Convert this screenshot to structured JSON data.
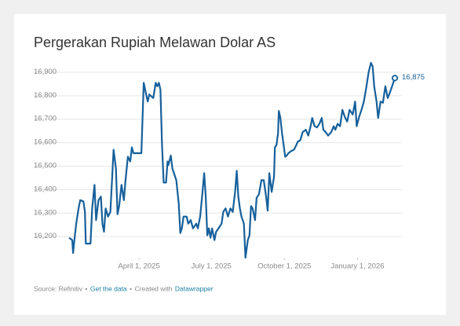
{
  "chart_data": {
    "type": "line",
    "title": "Pergerakan Rupiah Melawan Dolar AS",
    "source": "Source: Refinitiv",
    "separator": "•",
    "get_data": "Get the data",
    "created_with": "Created with",
    "credit": "Datawrapper",
    "xlim": [
      "2025-01-03",
      "2026-02-17"
    ],
    "xticks": [
      {
        "value": "2025-04-01",
        "label": "April 1, 2025"
      },
      {
        "value": "2025-07-01",
        "label": "July 1, 2025"
      },
      {
        "value": "2025-10-01",
        "label": "October 1, 2025"
      },
      {
        "value": "2026-01-01",
        "label": "January 1, 2026"
      }
    ],
    "ylim": [
      16100,
      16950
    ],
    "yticks": [
      {
        "value": 16200,
        "label": "16,200"
      },
      {
        "value": 16300,
        "label": "16,300"
      },
      {
        "value": 16400,
        "label": "16,400"
      },
      {
        "value": 16500,
        "label": "16,500"
      },
      {
        "value": 16600,
        "label": "16,600"
      },
      {
        "value": 16700,
        "label": "16,700"
      },
      {
        "value": 16800,
        "label": "16,800"
      },
      {
        "value": 16900,
        "label": "16,900"
      }
    ],
    "grid": true,
    "x": [
      "2025-01-03",
      "2025-01-07",
      "2025-01-08",
      "2025-01-10",
      "2025-01-12",
      "2025-01-15",
      "2025-01-17",
      "2025-01-21",
      "2025-01-23",
      "2025-01-24",
      "2025-01-30",
      "2025-02-01",
      "2025-02-04",
      "2025-02-06",
      "2025-02-09",
      "2025-02-12",
      "2025-02-14",
      "2025-02-16",
      "2025-02-18",
      "2025-02-21",
      "2025-02-24",
      "2025-02-26",
      "2025-02-28",
      "2025-03-03",
      "2025-03-05",
      "2025-03-07",
      "2025-03-10",
      "2025-03-13",
      "2025-03-15",
      "2025-03-18",
      "2025-03-21",
      "2025-03-23",
      "2025-03-25",
      "2025-04-04",
      "2025-04-07",
      "2025-04-10",
      "2025-04-12",
      "2025-04-14",
      "2025-04-19",
      "2025-04-22",
      "2025-04-24",
      "2025-04-26",
      "2025-04-28",
      "2025-04-30",
      "2025-05-02",
      "2025-05-05",
      "2025-05-07",
      "2025-05-08",
      "2025-05-11",
      "2025-05-13",
      "2025-05-18",
      "2025-05-21",
      "2025-05-23",
      "2025-05-25",
      "2025-05-27",
      "2025-05-31",
      "2025-06-02",
      "2025-06-05",
      "2025-06-08",
      "2025-06-12",
      "2025-06-14",
      "2025-06-17",
      "2025-06-20",
      "2025-06-22",
      "2025-06-24",
      "2025-06-26",
      "2025-06-28",
      "2025-06-30",
      "2025-07-02",
      "2025-07-05",
      "2025-07-07",
      "2025-07-10",
      "2025-07-14",
      "2025-07-16",
      "2025-07-19",
      "2025-07-22",
      "2025-07-25",
      "2025-07-28",
      "2025-07-31",
      "2025-08-02",
      "2025-08-04",
      "2025-08-06",
      "2025-08-08",
      "2025-08-11",
      "2025-08-13",
      "2025-08-16",
      "2025-08-18",
      "2025-08-20",
      "2025-08-22",
      "2025-08-25",
      "2025-08-27",
      "2025-08-30",
      "2025-09-02",
      "2025-09-05",
      "2025-09-08",
      "2025-09-10",
      "2025-09-12",
      "2025-09-15",
      "2025-09-18",
      "2025-09-19",
      "2025-09-21",
      "2025-09-23",
      "2025-09-24",
      "2025-09-26",
      "2025-09-28",
      "2025-09-30",
      "2025-10-02",
      "2025-10-04",
      "2025-10-06",
      "2025-10-10",
      "2025-10-13",
      "2025-10-16",
      "2025-10-18",
      "2025-10-21",
      "2025-10-24",
      "2025-10-28",
      "2025-10-31",
      "2025-11-03",
      "2025-11-05",
      "2025-11-08",
      "2025-11-11",
      "2025-11-14",
      "2025-11-17",
      "2025-11-19",
      "2025-11-22",
      "2025-11-25",
      "2025-11-29",
      "2025-12-02",
      "2025-12-04",
      "2025-12-07",
      "2025-12-10",
      "2025-12-13",
      "2025-12-16",
      "2025-12-19",
      "2025-12-22",
      "2025-12-26",
      "2025-12-29",
      "2025-12-31",
      "2026-01-03",
      "2026-01-06",
      "2026-01-09",
      "2026-01-12",
      "2026-01-15",
      "2026-01-18",
      "2026-01-20",
      "2026-01-22",
      "2026-01-25",
      "2026-01-27",
      "2026-01-30",
      "2026-02-02",
      "2026-02-05",
      "2026-02-08",
      "2026-02-11",
      "2026-02-14",
      "2026-02-17"
    ],
    "series": [
      {
        "color": "#16609b",
        "values": [
          16195,
          16185,
          16130,
          16195,
          16255,
          16320,
          16355,
          16350,
          16305,
          16170,
          16170,
          16320,
          16420,
          16270,
          16355,
          16370,
          16255,
          16220,
          16320,
          16285,
          16305,
          16440,
          16570,
          16490,
          16295,
          16330,
          16420,
          16355,
          16440,
          16540,
          16520,
          16580,
          16555,
          16555,
          16855,
          16805,
          16775,
          16805,
          16790,
          16855,
          16840,
          16855,
          16825,
          16590,
          16430,
          16430,
          16520,
          16505,
          16545,
          16490,
          16440,
          16340,
          16215,
          16235,
          16285,
          16285,
          16255,
          16270,
          16235,
          16255,
          16235,
          16285,
          16390,
          16470,
          16370,
          16205,
          16235,
          16195,
          16235,
          16185,
          16220,
          16235,
          16255,
          16305,
          16320,
          16285,
          16320,
          16305,
          16390,
          16480,
          16370,
          16320,
          16285,
          16255,
          16110,
          16185,
          16205,
          16330,
          16320,
          16270,
          16365,
          16380,
          16440,
          16440,
          16370,
          16310,
          16470,
          16390,
          16455,
          16580,
          16590,
          16640,
          16735,
          16705,
          16640,
          16590,
          16540,
          16545,
          16555,
          16565,
          16570,
          16590,
          16605,
          16610,
          16645,
          16655,
          16630,
          16670,
          16705,
          16670,
          16665,
          16680,
          16705,
          16655,
          16645,
          16630,
          16645,
          16670,
          16655,
          16680,
          16670,
          16740,
          16710,
          16690,
          16740,
          16720,
          16775,
          16670,
          16710,
          16740,
          16775,
          16835,
          16900,
          16940,
          16925,
          16840,
          16775,
          16705,
          16775,
          16770,
          16840,
          16790,
          16815,
          16845,
          16875
        ],
        "value_labels": [
          null,
          null,
          null,
          null,
          null,
          null,
          null,
          null,
          null,
          null,
          null,
          null,
          null,
          null,
          null,
          null,
          null,
          null,
          null,
          null,
          null,
          null,
          null,
          null,
          null,
          null,
          null,
          null,
          null,
          null,
          null,
          null,
          null,
          null,
          null,
          null,
          null,
          null,
          null,
          null,
          null,
          null,
          null,
          null,
          null,
          null,
          null,
          null,
          null,
          null,
          null,
          null,
          null,
          null,
          null,
          null,
          null,
          null,
          null,
          null,
          null,
          null,
          null,
          null,
          null,
          null,
          null,
          null,
          null,
          null,
          null,
          null,
          null,
          null,
          null,
          null,
          null,
          null,
          null,
          null,
          null,
          null,
          null,
          null,
          null,
          null,
          null,
          null,
          null,
          null,
          null,
          null,
          null,
          null,
          null,
          null,
          null,
          null,
          null,
          null,
          null,
          null,
          null,
          null,
          null,
          null,
          null,
          null,
          null,
          null,
          null,
          null,
          null,
          null,
          null,
          null,
          null,
          null,
          null,
          null,
          null,
          null,
          null,
          null,
          null,
          null,
          null,
          null,
          null,
          null,
          null,
          null,
          null,
          null,
          null,
          null,
          null,
          null,
          null,
          null,
          null,
          null,
          null,
          null,
          null,
          null,
          null,
          null,
          null,
          null,
          null,
          null,
          null,
          null,
          "16,875"
        ]
      }
    ]
  }
}
